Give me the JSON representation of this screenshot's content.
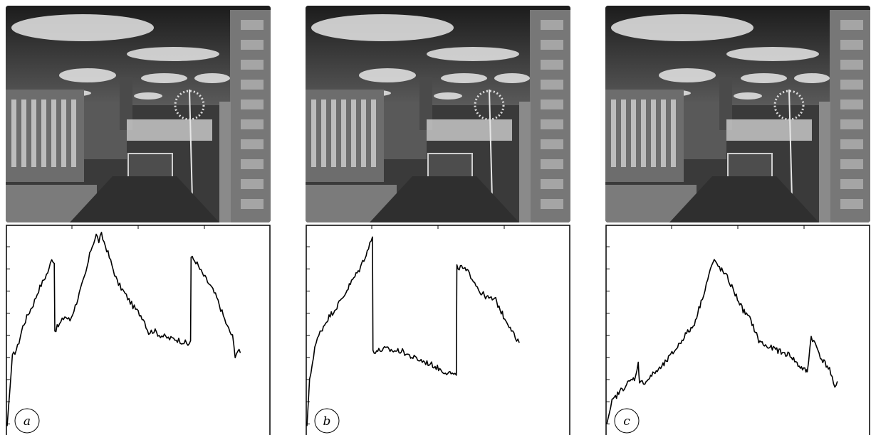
{
  "panels": [
    {
      "label": "a"
    },
    {
      "label": "b"
    },
    {
      "label": "c"
    }
  ],
  "chart_data": [
    {
      "type": "line",
      "ylim": [
        0,
        1
      ],
      "grid": false,
      "x": [
        0.0,
        0.02,
        0.04,
        0.06,
        0.08,
        0.1,
        0.12,
        0.14,
        0.16,
        0.17,
        0.18,
        0.182,
        0.2,
        0.22,
        0.24,
        0.26,
        0.28,
        0.3,
        0.32,
        0.34,
        0.35,
        0.36,
        0.38,
        0.4,
        0.42,
        0.44,
        0.46,
        0.48,
        0.5,
        0.52,
        0.54,
        0.56,
        0.58,
        0.6,
        0.62,
        0.64,
        0.66,
        0.68,
        0.69,
        0.7,
        0.702,
        0.72,
        0.74,
        0.76,
        0.78,
        0.8,
        0.82,
        0.84,
        0.86,
        0.87,
        0.88,
        0.89
      ],
      "y": [
        0.03,
        0.37,
        0.42,
        0.52,
        0.58,
        0.63,
        0.7,
        0.75,
        0.8,
        0.86,
        0.83,
        0.5,
        0.53,
        0.57,
        0.55,
        0.62,
        0.7,
        0.78,
        0.9,
        0.97,
        0.94,
        0.97,
        0.9,
        0.82,
        0.74,
        0.7,
        0.66,
        0.62,
        0.59,
        0.56,
        0.49,
        0.5,
        0.48,
        0.47,
        0.46,
        0.46,
        0.45,
        0.44,
        0.43,
        0.45,
        0.86,
        0.84,
        0.79,
        0.75,
        0.71,
        0.66,
        0.59,
        0.52,
        0.47,
        0.38,
        0.4,
        0.39
      ]
    },
    {
      "type": "line",
      "ylim": [
        0,
        1
      ],
      "grid": false,
      "x": [
        0.0,
        0.01,
        0.03,
        0.05,
        0.08,
        0.11,
        0.14,
        0.17,
        0.2,
        0.23,
        0.25,
        0.252,
        0.27,
        0.3,
        0.33,
        0.36,
        0.4,
        0.44,
        0.48,
        0.52,
        0.55,
        0.56,
        0.57,
        0.572,
        0.59,
        0.62,
        0.64,
        0.66,
        0.69,
        0.72,
        0.75,
        0.78,
        0.8,
        0.81
      ],
      "y": [
        0.03,
        0.25,
        0.42,
        0.49,
        0.56,
        0.61,
        0.67,
        0.74,
        0.8,
        0.89,
        0.96,
        0.4,
        0.4,
        0.41,
        0.4,
        0.4,
        0.37,
        0.35,
        0.33,
        0.3,
        0.29,
        0.28,
        0.28,
        0.81,
        0.81,
        0.78,
        0.74,
        0.69,
        0.66,
        0.65,
        0.57,
        0.51,
        0.45,
        0.44
      ]
    },
    {
      "type": "line",
      "ylim": [
        0,
        1
      ],
      "grid": false,
      "x": [
        0.0,
        0.02,
        0.05,
        0.08,
        0.11,
        0.12,
        0.125,
        0.15,
        0.18,
        0.21,
        0.24,
        0.27,
        0.3,
        0.33,
        0.36,
        0.38,
        0.4,
        0.41,
        0.43,
        0.46,
        0.49,
        0.52,
        0.55,
        0.58,
        0.61,
        0.64,
        0.67,
        0.7,
        0.73,
        0.76,
        0.765,
        0.78,
        0.8,
        0.82,
        0.85,
        0.87,
        0.88
      ],
      "y": [
        0.04,
        0.15,
        0.2,
        0.24,
        0.27,
        0.35,
        0.24,
        0.25,
        0.29,
        0.32,
        0.37,
        0.42,
        0.48,
        0.52,
        0.64,
        0.73,
        0.82,
        0.84,
        0.81,
        0.76,
        0.68,
        0.6,
        0.55,
        0.45,
        0.42,
        0.41,
        0.39,
        0.38,
        0.33,
        0.3,
        0.3,
        0.47,
        0.42,
        0.36,
        0.31,
        0.21,
        0.25
      ]
    }
  ]
}
